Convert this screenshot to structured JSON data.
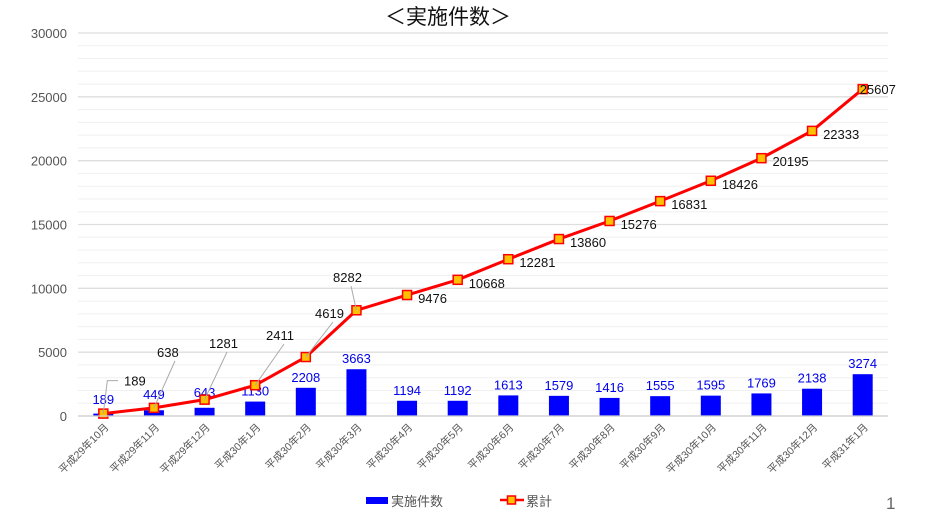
{
  "page": {
    "number": "1"
  },
  "chart_data": {
    "type": "bar+line",
    "title": "＜実施件数＞",
    "xlabel": "",
    "ylabel": "",
    "ylim": [
      0,
      30000
    ],
    "yticks": [
      0,
      5000,
      10000,
      15000,
      20000,
      25000,
      30000
    ],
    "grid": true,
    "legend_position": "bottom",
    "categories": [
      "平成29年10月",
      "平成29年11月",
      "平成29年12月",
      "平成30年1月",
      "平成30年2月",
      "平成30年3月",
      "平成30年4月",
      "平成30年5月",
      "平成30年6月",
      "平成30年7月",
      "平成30年8月",
      "平成30年9月",
      "平成30年10月",
      "平成30年11月",
      "平成30年12月",
      "平成31年1月"
    ],
    "series": [
      {
        "name": "実施件数",
        "type": "bar",
        "color": "#0000ff",
        "label_color": "#0000ee",
        "values": [
          189,
          449,
          643,
          1130,
          2208,
          3663,
          1194,
          1192,
          1613,
          1579,
          1416,
          1555,
          1595,
          1769,
          2138,
          3274
        ]
      },
      {
        "name": "累計",
        "type": "line",
        "color": "#ff0000",
        "marker_fill": "#ffc000",
        "values": [
          189,
          638,
          1281,
          2411,
          4619,
          8282,
          9476,
          10668,
          12281,
          13860,
          15276,
          16831,
          18426,
          20195,
          22333,
          25607
        ]
      }
    ]
  }
}
